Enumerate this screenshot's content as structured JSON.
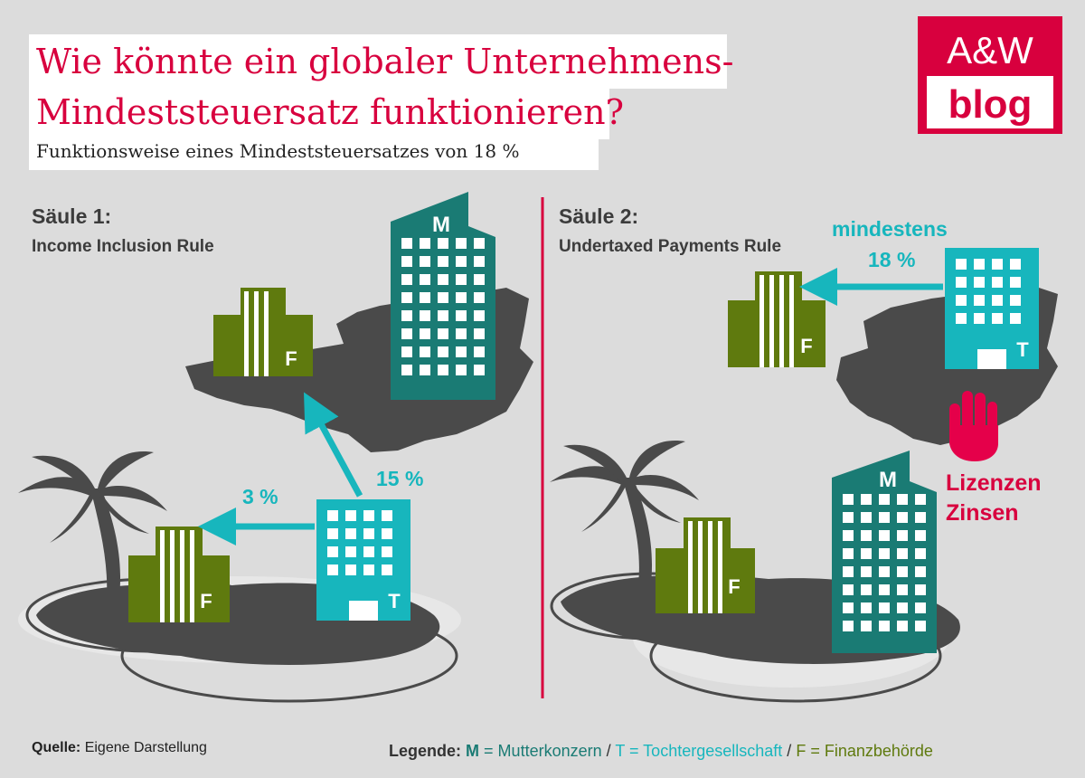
{
  "header": {
    "title": "Wie könnte ein globaler Unternehmens-Mindeststeuersatz funktionieren?",
    "subtitle": "Funktionsweise eines Mindeststeuersatzes von 18 %"
  },
  "logo": {
    "line1": "A&W",
    "line2": "blog"
  },
  "pillar1": {
    "heading": "Säule 1:",
    "rule": "Income Inclusion Rule",
    "rate_to_island_f": "3 %",
    "rate_to_home": "15 %",
    "labels": {
      "m": "M",
      "t": "T",
      "f_home": "F",
      "f_island": "F"
    }
  },
  "pillar2": {
    "heading": "Säule 2:",
    "rule": "Undertaxed Payments Rule",
    "min_label": "mindestens",
    "min_rate": "18 %",
    "blocked_line1": "Lizenzen",
    "blocked_line2": "Zinsen",
    "labels": {
      "m": "M",
      "t": "T",
      "f_home": "F",
      "f_island": "F"
    }
  },
  "footer": {
    "source_label": "Quelle:",
    "source_text": "Eigene Darstellung",
    "legend_label": "Legende:",
    "legend_m_key": "M",
    "legend_m_text": "= Mutterkonzern",
    "legend_sep1": "/",
    "legend_t_text": "T = Tochtergesellschaft",
    "legend_sep2": "/",
    "legend_f_text": "F = Finanzbehörde"
  },
  "colors": {
    "accent_red": "#d8003e",
    "mother": "#1a7b74",
    "subsidiary": "#17b6bd",
    "authority": "#5f7a0e",
    "land": "#4a4a4a",
    "background": "#dcdcdc"
  }
}
